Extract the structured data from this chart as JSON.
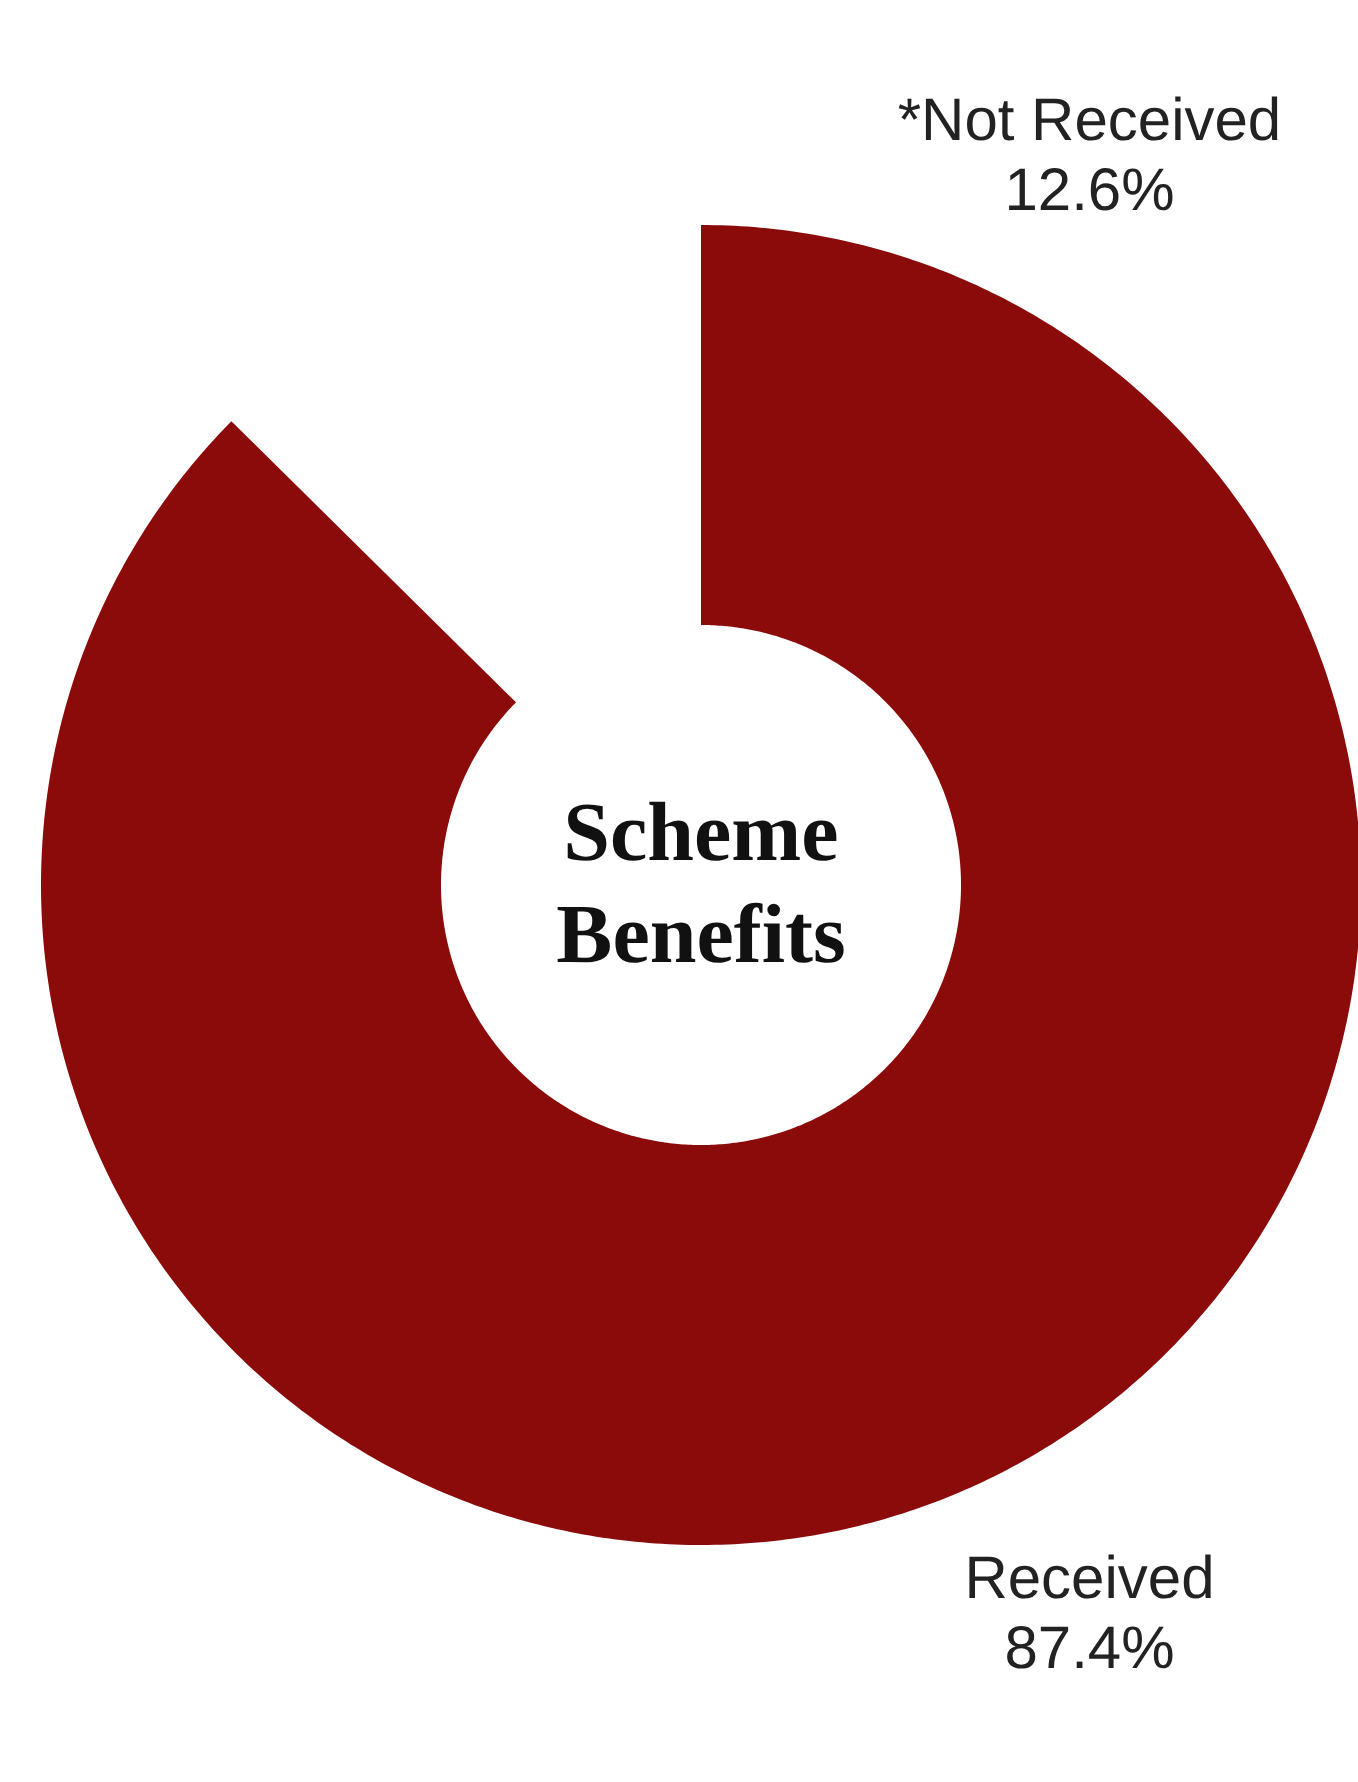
{
  "chart_data": {
    "type": "donut",
    "title": "Scheme Benefits",
    "categories": [
      "*Not Received",
      "Received"
    ],
    "values": [
      12.6,
      87.4
    ],
    "colors": [
      "#f0f0f0",
      "#8b0a0a"
    ],
    "value_labels": [
      "12.6%",
      "87.4%"
    ]
  }
}
